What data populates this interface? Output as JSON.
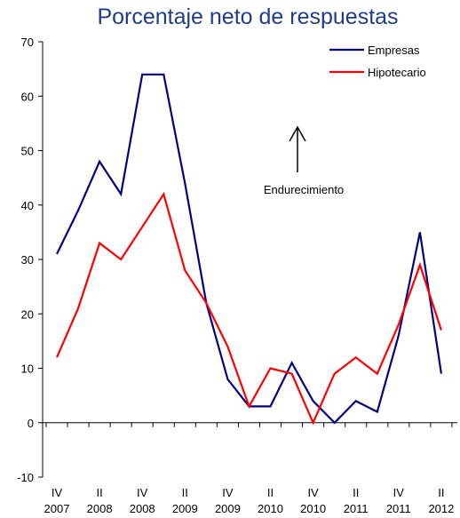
{
  "chart_data": {
    "type": "line",
    "title": "Porcentaje neto de respuestas",
    "categories": [
      {
        "q": "IV",
        "y": "2007"
      },
      {
        "q": "",
        "y": ""
      },
      {
        "q": "II",
        "y": "2008"
      },
      {
        "q": "",
        "y": ""
      },
      {
        "q": "IV",
        "y": "2008"
      },
      {
        "q": "",
        "y": ""
      },
      {
        "q": "II",
        "y": "2009"
      },
      {
        "q": "",
        "y": ""
      },
      {
        "q": "IV",
        "y": "2009"
      },
      {
        "q": "",
        "y": ""
      },
      {
        "q": "II",
        "y": "2010"
      },
      {
        "q": "",
        "y": ""
      },
      {
        "q": "IV",
        "y": "2010"
      },
      {
        "q": "",
        "y": ""
      },
      {
        "q": "II",
        "y": "2011"
      },
      {
        "q": "",
        "y": ""
      },
      {
        "q": "IV",
        "y": "2011"
      },
      {
        "q": "",
        "y": ""
      },
      {
        "q": "II",
        "y": "2012"
      }
    ],
    "series": [
      {
        "name": "Empresas",
        "color": "#000080",
        "values": [
          31,
          39,
          48,
          42,
          64,
          64,
          44,
          22,
          8,
          3,
          3,
          11,
          4,
          0,
          4,
          2,
          16,
          35,
          9
        ]
      },
      {
        "name": "Hipotecario",
        "color": "#FF0000",
        "values": [
          12,
          21,
          33,
          30,
          36,
          42,
          28,
          22,
          14,
          3,
          10,
          9,
          0,
          9,
          12,
          9,
          18,
          29,
          17
        ]
      }
    ],
    "ylim": [
      -10,
      70
    ],
    "yticks": [
      -10,
      0,
      10,
      20,
      30,
      40,
      50,
      60,
      70
    ],
    "annotation": {
      "text": "Endurecimiento"
    },
    "legend": "top-right",
    "grid": false
  }
}
